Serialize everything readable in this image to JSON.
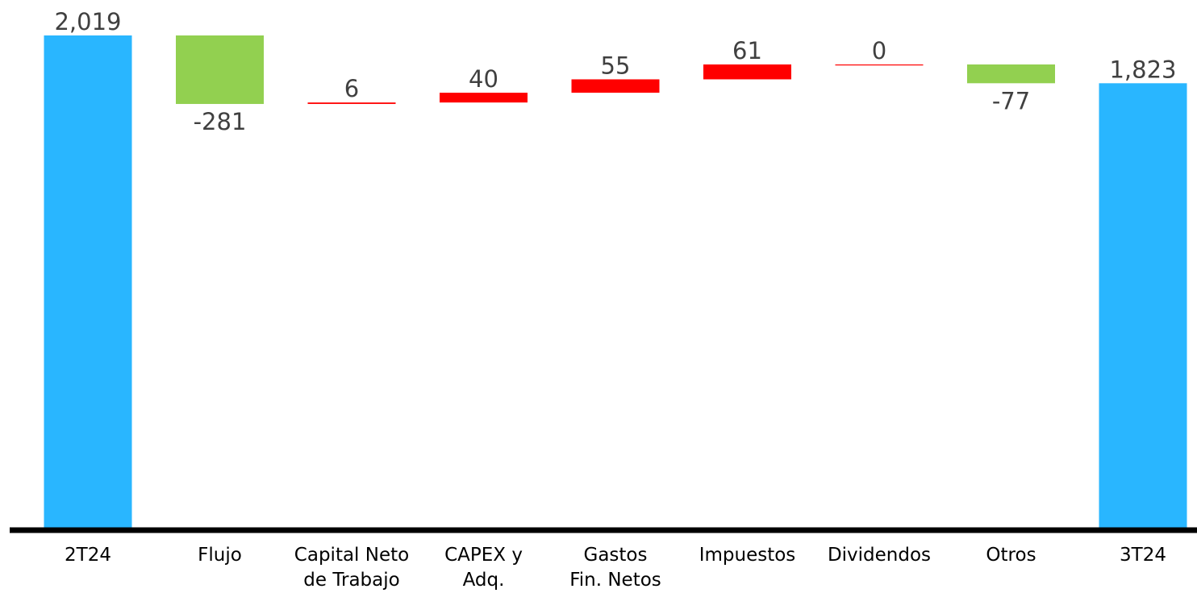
{
  "chart_data": {
    "type": "waterfall",
    "title": "",
    "xlabel": "",
    "ylabel": "",
    "ylim": [
      0,
      2019
    ],
    "grid": false,
    "categories": [
      [
        "2T24"
      ],
      [
        "Flujo"
      ],
      [
        "Capital Neto",
        "de Trabajo"
      ],
      [
        "CAPEX y",
        "Adq."
      ],
      [
        "Gastos",
        "Fin. Netos"
      ],
      [
        "Impuestos"
      ],
      [
        "Dividendos"
      ],
      [
        "Otros"
      ],
      [
        "3T24"
      ]
    ],
    "values": [
      2019,
      -281,
      6,
      40,
      55,
      61,
      0,
      -77,
      1823
    ],
    "value_labels": [
      "2,019",
      "-281",
      "6",
      "40",
      "55",
      "61",
      "0",
      "-77",
      "1,823"
    ],
    "kinds": [
      "total",
      "delta",
      "delta",
      "delta",
      "delta",
      "delta",
      "delta",
      "delta",
      "total"
    ],
    "colors": {
      "total": "#29b6ff",
      "decrease": "#92d050",
      "increase": "#ff0000",
      "axis": "#000000",
      "value_label": "#404040"
    }
  }
}
